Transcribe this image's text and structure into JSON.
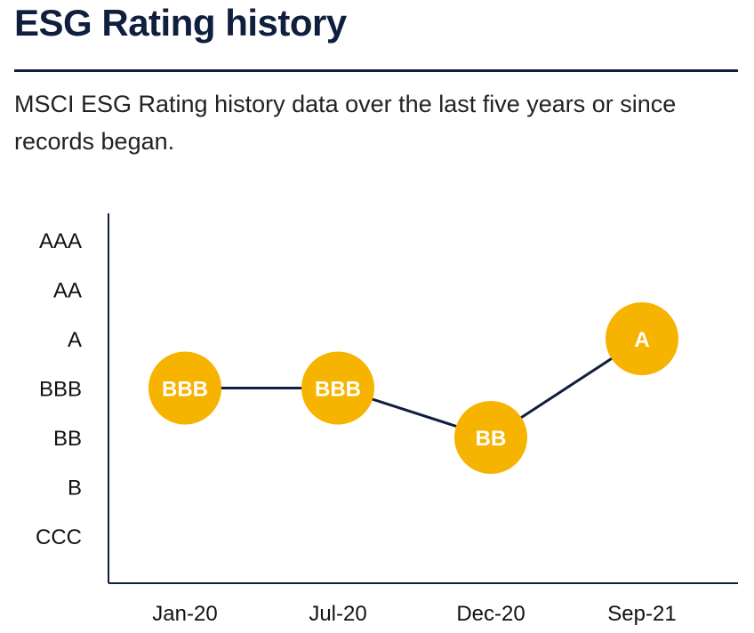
{
  "header": {
    "title": "ESG Rating history",
    "subtitle": "MSCI ESG Rating history data over the last five years or since records began."
  },
  "chart_data": {
    "type": "line",
    "title": "ESG Rating history",
    "xlabel": "",
    "ylabel": "",
    "y_categories": [
      "CCC",
      "B",
      "BB",
      "BBB",
      "A",
      "AA",
      "AAA"
    ],
    "x": [
      "Jan-20",
      "Jul-20",
      "Dec-20",
      "Sep-21"
    ],
    "series": [
      {
        "values": [
          "BBB",
          "BBB",
          "BB",
          "A"
        ]
      }
    ],
    "grid": false,
    "legend": "none",
    "colors": {
      "marker": "#f6b400",
      "line": "#0f1f3d",
      "axis": "#0f1f3d",
      "marker_text": "#ffffff"
    }
  }
}
